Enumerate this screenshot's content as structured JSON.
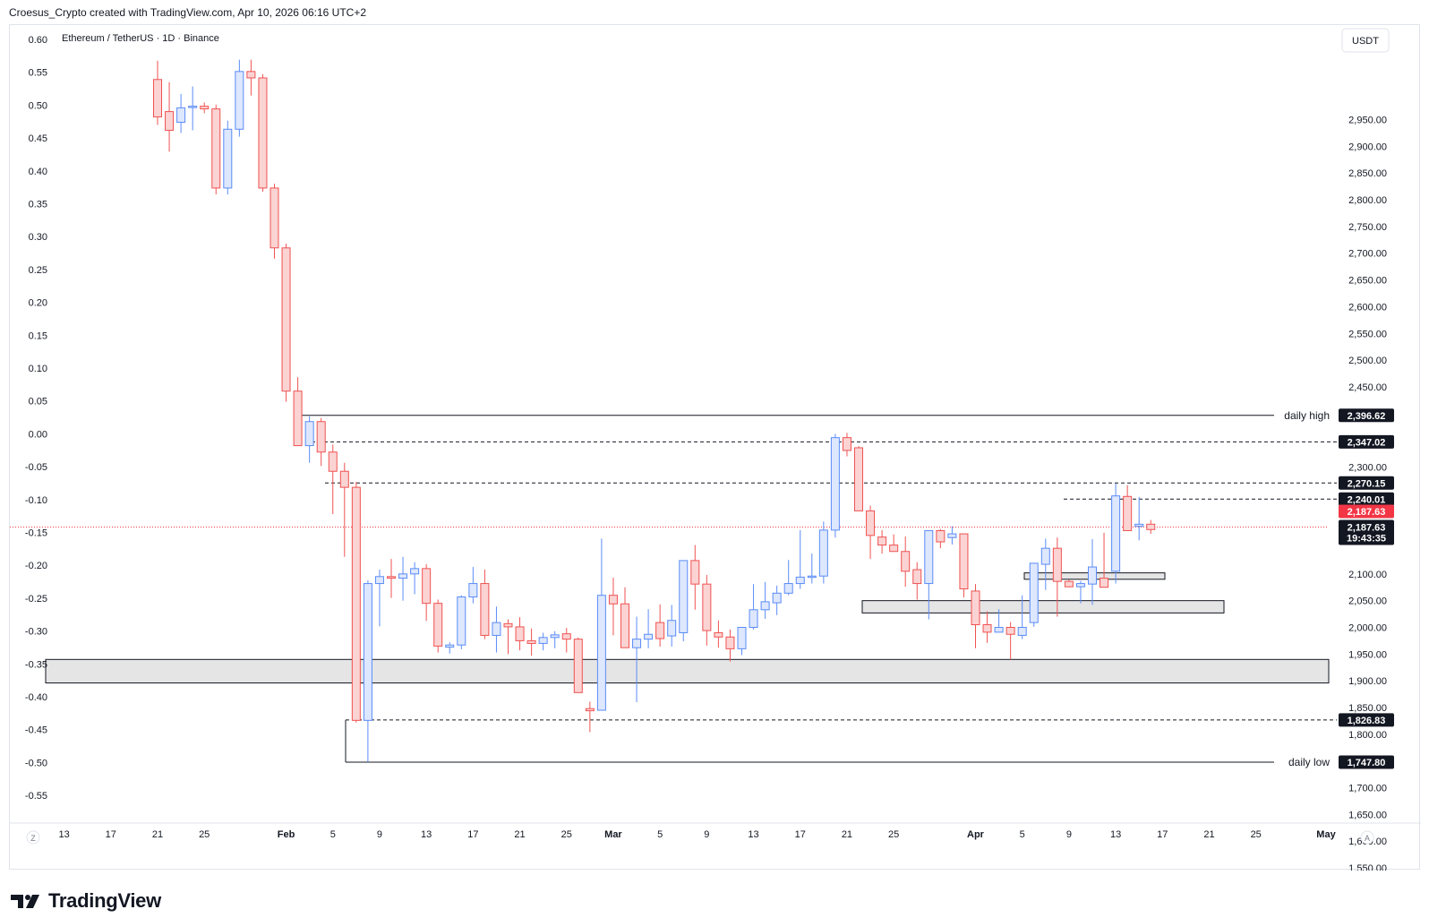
{
  "header": {
    "text": "Croesus_Crypto created with TradingView.com, Apr 10, 2026 06:16 UTC+2"
  },
  "brand": {
    "name": "TradingView"
  },
  "chart_data": {
    "type": "candlestick",
    "title": "Ethereum / TetherUS · 1D · Binance",
    "currency_button": "USDT",
    "right_axis": {
      "ticks": [
        2950,
        2900,
        2850,
        2800,
        2750,
        2700,
        2650,
        2600,
        2550,
        2500,
        2450,
        2300,
        2100,
        2050,
        2000,
        1950,
        1900,
        1850,
        1800,
        1700,
        1650,
        1600,
        1550
      ],
      "labels": [
        "2,950.00",
        "2,900.00",
        "2,850.00",
        "2,800.00",
        "2,750.00",
        "2,700.00",
        "2,650.00",
        "2,600.00",
        "2,550.00",
        "2,500.00",
        "2,450.00",
        "2,300.00",
        "2,100.00",
        "2,050.00",
        "2,000.00",
        "1,950.00",
        "1,900.00",
        "1,850.00",
        "1,800.00",
        "1,700.00",
        "1,650.00",
        "1,600.00",
        "1,550.00"
      ]
    },
    "left_axis": {
      "labels": [
        "0.60",
        "0.55",
        "0.50",
        "0.45",
        "0.40",
        "0.35",
        "0.30",
        "0.25",
        "0.20",
        "0.15",
        "0.10",
        "0.05",
        "0.00",
        "-0.05",
        "-0.10",
        "-0.15",
        "-0.20",
        "-0.25",
        "-0.30",
        "-0.35",
        "-0.40",
        "-0.45",
        "-0.50",
        "-0.55"
      ]
    },
    "x_axis": {
      "labels": [
        "13",
        "17",
        "21",
        "25",
        "Feb",
        "5",
        "9",
        "13",
        "17",
        "21",
        "25",
        "Mar",
        "5",
        "9",
        "13",
        "17",
        "21",
        "25",
        "Apr",
        "5",
        "9",
        "13",
        "17",
        "21",
        "25",
        "May"
      ],
      "slots": [
        -8,
        -4,
        0,
        4,
        11,
        15,
        19,
        23,
        27,
        31,
        35,
        39,
        43,
        47,
        51,
        55,
        59,
        63,
        70,
        74,
        78,
        82,
        86,
        90,
        94,
        100
      ],
      "corner_left": "Z",
      "corner_right": "A"
    },
    "candles_ohlc": [
      [
        3025,
        3060,
        2940,
        2955
      ],
      [
        2965,
        3020,
        2890,
        2930
      ],
      [
        2945,
        2998,
        2925,
        2972
      ],
      [
        2975,
        3012,
        2930,
        2975
      ],
      [
        2975,
        2982,
        2962,
        2970
      ],
      [
        2970,
        2978,
        2810,
        2822
      ],
      [
        2822,
        2948,
        2810,
        2932
      ],
      [
        2932,
        3062,
        2918,
        3040
      ],
      [
        3040,
        3062,
        2995,
        3028
      ],
      [
        3028,
        3035,
        2815,
        2822
      ],
      [
        2822,
        2830,
        2690,
        2710
      ],
      [
        2710,
        2718,
        2422,
        2442
      ],
      [
        2442,
        2468,
        2355,
        2340
      ],
      [
        2340,
        2395,
        2308,
        2385
      ],
      [
        2385,
        2392,
        2302,
        2328
      ],
      [
        2328,
        2342,
        2212,
        2292
      ],
      [
        2292,
        2308,
        2132,
        2262
      ],
      [
        2262,
        2272,
        1822,
        1826
      ],
      [
        1826,
        2088,
        1748,
        2082
      ],
      [
        2082,
        2108,
        2002,
        2095
      ],
      [
        2095,
        2128,
        2055,
        2092
      ],
      [
        2092,
        2132,
        2050,
        2100
      ],
      [
        2100,
        2122,
        2062,
        2110
      ],
      [
        2110,
        2118,
        2012,
        2045
      ],
      [
        2045,
        2052,
        1953,
        1965
      ],
      [
        1963,
        1972,
        1951,
        1967
      ],
      [
        1967,
        2060,
        1959,
        2057
      ],
      [
        2057,
        2113,
        2045,
        2082
      ],
      [
        2082,
        2108,
        1978,
        1985
      ],
      [
        1985,
        2039,
        1953,
        2009
      ],
      [
        2007,
        2015,
        1950,
        2001
      ],
      [
        2001,
        2019,
        1957,
        1975
      ],
      [
        1975,
        1998,
        1947,
        1970
      ],
      [
        1970,
        1990,
        1957,
        1981
      ],
      [
        1981,
        1993,
        1961,
        1986
      ],
      [
        1988,
        1999,
        1953,
        1978
      ],
      [
        1978,
        1981,
        1881,
        1878
      ],
      [
        1848,
        1861,
        1804,
        1844
      ],
      [
        1845,
        2166,
        1850,
        2060
      ],
      [
        2060,
        2093,
        1985,
        2044
      ],
      [
        2044,
        2075,
        1963,
        1962
      ],
      [
        1962,
        2020,
        1860,
        1978
      ],
      [
        1978,
        2034,
        1961,
        1987
      ],
      [
        2009,
        2043,
        1964,
        1979
      ],
      [
        1984,
        2042,
        1964,
        2013
      ],
      [
        1990,
        2072,
        1974,
        2125
      ],
      [
        2125,
        2154,
        2033,
        2081
      ],
      [
        2081,
        2098,
        1966,
        1994
      ],
      [
        1990,
        2013,
        1962,
        1982
      ],
      [
        1982,
        1996,
        1936,
        1960
      ],
      [
        1960,
        1995,
        1948,
        2000
      ],
      [
        2000,
        2081,
        1996,
        2033
      ],
      [
        2033,
        2085,
        2016,
        2048
      ],
      [
        2046,
        2078,
        2023,
        2064
      ],
      [
        2064,
        2126,
        2060,
        2082
      ],
      [
        2082,
        2182,
        2072,
        2094
      ],
      [
        2094,
        2138,
        2082,
        2096
      ],
      [
        2096,
        2198,
        2082,
        2182
      ],
      [
        2182,
        2362,
        2168,
        2355
      ],
      [
        2355,
        2364,
        2320,
        2331
      ],
      [
        2336,
        2339,
        2235,
        2218
      ],
      [
        2218,
        2228,
        2128,
        2172
      ],
      [
        2169,
        2182,
        2138,
        2154
      ],
      [
        2154,
        2174,
        2147,
        2142
      ],
      [
        2142,
        2170,
        2076,
        2105
      ],
      [
        2108,
        2122,
        2052,
        2082
      ],
      [
        2082,
        2118,
        2015,
        2181
      ],
      [
        2181,
        2184,
        2148,
        2160
      ],
      [
        2168,
        2189,
        2155,
        2175
      ],
      [
        2175,
        2156,
        2056,
        2072
      ],
      [
        2068,
        2081,
        1961,
        2005
      ],
      [
        2005,
        2030,
        1971,
        1991
      ],
      [
        1991,
        2034,
        1994,
        2000
      ],
      [
        2000,
        2010,
        1940,
        1987
      ],
      [
        1985,
        2060,
        1978,
        2000
      ],
      [
        2009,
        2105,
        2001,
        2120
      ],
      [
        2118,
        2166,
        2070,
        2148
      ],
      [
        2148,
        2168,
        2020,
        2086
      ],
      [
        2086,
        2089,
        2075,
        2076
      ],
      [
        2076,
        2087,
        2045,
        2082
      ],
      [
        2081,
        2165,
        2042,
        2113
      ],
      [
        2092,
        2177,
        2077,
        2075
      ],
      [
        2105,
        2269,
        2082,
        2246
      ],
      [
        2245,
        2266,
        2185,
        2181
      ],
      [
        2189,
        2244,
        2163,
        2193
      ],
      [
        2193,
        2201,
        2175,
        2183
      ]
    ],
    "levels": [
      {
        "label": "daily high",
        "value": 2396.62,
        "value_label": "2,396.62",
        "style": "solid"
      },
      {
        "value": 2347.02,
        "value_label": "2,347.02",
        "style": "dashed"
      },
      {
        "value": 2270.15,
        "value_label": "2,270.15",
        "style": "dashed"
      },
      {
        "value": 2240.01,
        "value_label": "2,240.01",
        "style": "dashed"
      },
      {
        "value": 1826.83,
        "value_label": "1,826.83",
        "style": "dashed"
      },
      {
        "label": "daily low",
        "value": 1747.8,
        "value_label": "1,747.80",
        "style": "solid"
      }
    ],
    "current_price": {
      "value": 2187.63,
      "value_label": "2,187.63",
      "countdown": "19:43:35"
    },
    "zones": [
      {
        "from": 1896,
        "to": 1940
      },
      {
        "from": 2027,
        "to": 2050
      },
      {
        "from": 2090,
        "to": 2102
      }
    ],
    "colors": {
      "up": "#5b8cf7",
      "up_fill": "#dde7fd",
      "down": "#f05252",
      "down_fill": "#fbd3d3",
      "zone_fill": "#e0e0e0",
      "current": "#f23645",
      "label_bg": "#131722"
    }
  }
}
